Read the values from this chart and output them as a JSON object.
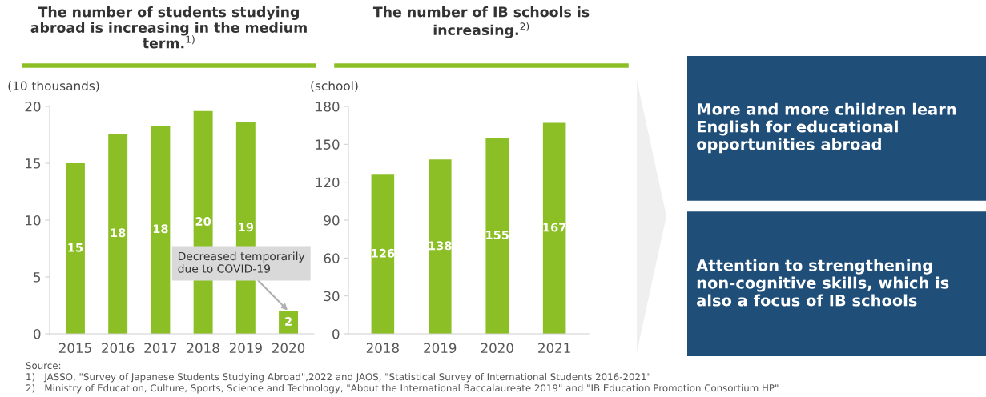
{
  "chart_data": [
    {
      "type": "bar",
      "title": "The number of students studying\nabroad is increasing in the medium\nterm.$^{1)}$",
      "ylabel": "(10 thousands)",
      "categories": [
        "2015",
        "2016",
        "2017",
        "2018",
        "2019",
        "2020"
      ],
      "values": [
        15.0,
        17.6,
        18.3,
        19.6,
        18.6,
        2.0
      ],
      "value_labels": [
        "15",
        "18",
        "18",
        "20",
        "19",
        "2"
      ],
      "color": "#8cbf26",
      "ylim": [
        0,
        20
      ],
      "yticks": [
        0,
        5,
        10,
        15,
        20
      ],
      "grid": false,
      "annotations": [
        {
          "text": "Decreased temporarily\ndue to COVID-19",
          "x": "2020",
          "y": 2.0
        },
        "Source:",
        "1)   JASSO, \"Survey of Japanese Students Studying Abroad\",2022 and JAOS, \"Statistical Survey of International Students 2016-2021\"",
        "2)   Ministry of Education, Culture, Sports, Science and Technology, \"About the International Baccalaureate 2019\" and \"IB Education Promotion Consortium HP\""
      ]
    },
    {
      "type": "bar",
      "title": "The number of IB schools is\nincreasing.$^{2)}$",
      "ylabel": "(school)",
      "categories": [
        "2018",
        "2019",
        "2020",
        "2021"
      ],
      "values": [
        126,
        138,
        155,
        167
      ],
      "data_labels": true,
      "color": "#8cbf26",
      "ylim": [
        0,
        180
      ],
      "yticks": [
        0,
        30,
        60,
        90,
        120,
        150,
        180
      ],
      "grid": false
    },
    {
      "type": "other",
      "annotations": [
        "More and more children learn\nEnglish for educational\nopportunities abroad",
        "Attention to strengthening\nnon-cognitive skills, which is\nalso a focus of IB schools"
      ],
      "colors": [
        "#1f4e79",
        "#1f4e79"
      ]
    }
  ]
}
